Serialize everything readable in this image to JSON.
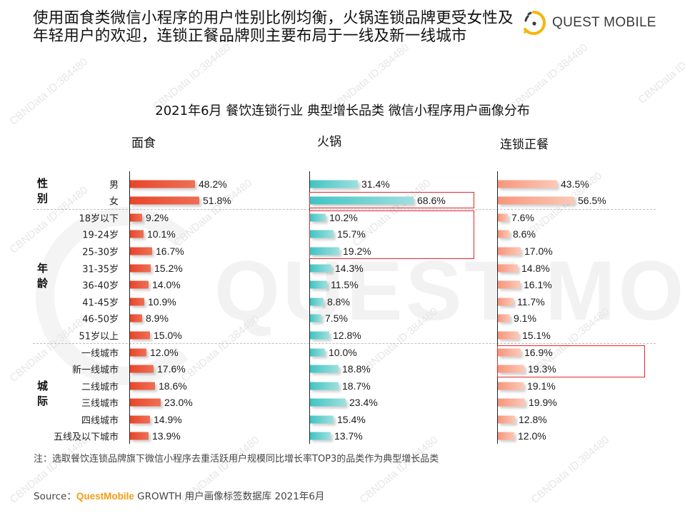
{
  "headline": "使用面食类微信小程序的用户性别比例均衡，火锅连锁品牌更受女性及年轻用户的欢迎，连锁正餐品牌则主要布局于一线及新一线城市",
  "logo": {
    "text": "QUEST MOBILE",
    "accent": "#f5b50a"
  },
  "watermark": {
    "big": "QUEST MOBILE",
    "tag": "CBNData ID:384480"
  },
  "note": "注：选取餐饮连锁品牌旗下微信小程序去重活跃用户规模同比增长率TOP3的品类作为典型增长品类",
  "source": {
    "prefix": "Source：",
    "brand": "QuestMobile",
    "rest": " GROWTH 用户画像标签数据库 2021年6月"
  },
  "chart_data": {
    "type": "bar",
    "orientation": "horizontal",
    "title": "2021年6月 餐饮连锁行业 典型增长品类 微信小程序用户画像分布",
    "groups": [
      {
        "name": "性别",
        "categories": [
          "男",
          "女"
        ]
      },
      {
        "name": "年龄",
        "categories": [
          "18岁以下",
          "19-24岁",
          "25-30岁",
          "31-35岁",
          "36-40岁",
          "41-45岁",
          "46-50岁",
          "51岁以上"
        ]
      },
      {
        "name": "城际",
        "categories": [
          "一线城市",
          "新一线城市",
          "二线城市",
          "三线城市",
          "四线城市",
          "五线及以下城市"
        ]
      }
    ],
    "categories": [
      "男",
      "女",
      "18岁以下",
      "19-24岁",
      "25-30岁",
      "31-35岁",
      "36-40岁",
      "41-45岁",
      "46-50岁",
      "51岁以上",
      "一线城市",
      "新一线城市",
      "二线城市",
      "三线城市",
      "四线城市",
      "五线及以下城市"
    ],
    "series": [
      {
        "name": "面食",
        "color": "#e8462a",
        "values": [
          48.2,
          51.8,
          9.2,
          10.1,
          16.7,
          15.2,
          14.0,
          10.9,
          8.9,
          15.0,
          12.0,
          17.6,
          18.6,
          23.0,
          14.9,
          13.9
        ]
      },
      {
        "name": "火锅",
        "color": "#41c4c4",
        "values": [
          31.4,
          68.6,
          10.2,
          15.7,
          19.2,
          14.3,
          11.5,
          8.8,
          7.5,
          12.8,
          10.0,
          18.8,
          18.7,
          23.4,
          15.4,
          13.7
        ]
      },
      {
        "name": "连锁正餐",
        "color": "#f8957c",
        "values": [
          43.5,
          56.5,
          7.6,
          8.6,
          17.0,
          14.8,
          16.1,
          11.7,
          9.1,
          15.1,
          16.9,
          19.3,
          19.1,
          19.9,
          12.8,
          12.0
        ]
      }
    ],
    "unit": "%",
    "highlights": [
      {
        "series": "火锅",
        "categories": [
          "女"
        ]
      },
      {
        "series": "火锅",
        "categories": [
          "18岁以下",
          "19-24岁",
          "25-30岁"
        ]
      },
      {
        "series": "连锁正餐",
        "categories": [
          "一线城市",
          "新一线城市"
        ]
      }
    ],
    "xlabel": "",
    "ylabel": "",
    "grid": false,
    "legend": "none"
  }
}
